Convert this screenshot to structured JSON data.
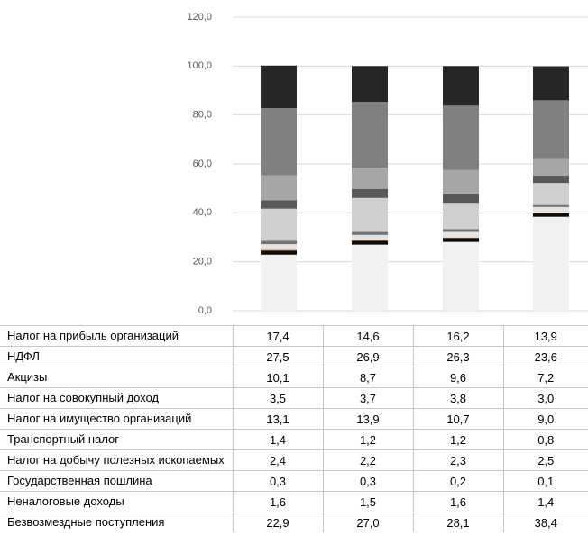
{
  "chart_data": {
    "type": "stacked_bar",
    "categories": [
      null,
      null,
      null,
      null
    ],
    "ylim": [
      0,
      120
    ],
    "yticks": [
      {
        "value": 0,
        "label": "0,0"
      },
      {
        "value": 20,
        "label": "20,0"
      },
      {
        "value": 40,
        "label": "40,0"
      },
      {
        "value": 60,
        "label": "60,0"
      },
      {
        "value": 80,
        "label": "80,0"
      },
      {
        "value": 100,
        "label": "100,0"
      },
      {
        "value": 120,
        "label": "120,0"
      }
    ],
    "grid": true,
    "series": [
      {
        "name": "Налог на прибыль организаций",
        "color": "#262626",
        "values": [
          17.4,
          14.6,
          16.2,
          13.9
        ],
        "value_labels": [
          "17,4",
          "14,6",
          "16,2",
          "13,9"
        ]
      },
      {
        "name": "НДФЛ",
        "color": "#808080",
        "values": [
          27.5,
          26.9,
          26.3,
          23.6
        ],
        "value_labels": [
          "27,5",
          "26,9",
          "26,3",
          "23,6"
        ]
      },
      {
        "name": "Акцизы",
        "color": "#a6a6a6",
        "values": [
          10.1,
          8.7,
          9.6,
          7.2
        ],
        "value_labels": [
          "10,1",
          "8,7",
          "9,6",
          "7,2"
        ]
      },
      {
        "name": "Налог на совокупный доход",
        "color": "#595959",
        "values": [
          3.5,
          3.7,
          3.8,
          3.0
        ],
        "value_labels": [
          "3,5",
          "3,7",
          "3,8",
          "3,0"
        ]
      },
      {
        "name": "Налог на имущество организаций",
        "color": "#d0d0d0",
        "values": [
          13.1,
          13.9,
          10.7,
          9.0
        ],
        "value_labels": [
          "13,1",
          "13,9",
          "10,7",
          "9,0"
        ]
      },
      {
        "name": "Транспортный налог",
        "color": "#737373",
        "values": [
          1.4,
          1.2,
          1.2,
          0.8
        ],
        "value_labels": [
          "1,4",
          "1,2",
          "1,2",
          "0,8"
        ]
      },
      {
        "name": "Налог на добычу полезных ископаемых",
        "color": "#e4e4e4",
        "values": [
          2.4,
          2.2,
          2.3,
          2.5
        ],
        "value_labels": [
          "2,4",
          "2,2",
          "2,3",
          "2,5"
        ]
      },
      {
        "name": "Государственная пошлина",
        "color": "#c55a11",
        "values": [
          0.3,
          0.3,
          0.2,
          0.1
        ],
        "value_labels": [
          "0,3",
          "0,3",
          "0,2",
          "0,1"
        ]
      },
      {
        "name": "Неналоговые доходы",
        "color": "#0d0d0d",
        "values": [
          1.6,
          1.5,
          1.6,
          1.4
        ],
        "value_labels": [
          "1,6",
          "1,5",
          "1,6",
          "1,4"
        ]
      },
      {
        "name": "Безвозмездные поступления",
        "color": "#f2f2f2",
        "values": [
          22.9,
          27.0,
          28.1,
          38.4
        ],
        "value_labels": [
          "22,9",
          "27,0",
          "28,1",
          "38,4"
        ]
      }
    ]
  }
}
